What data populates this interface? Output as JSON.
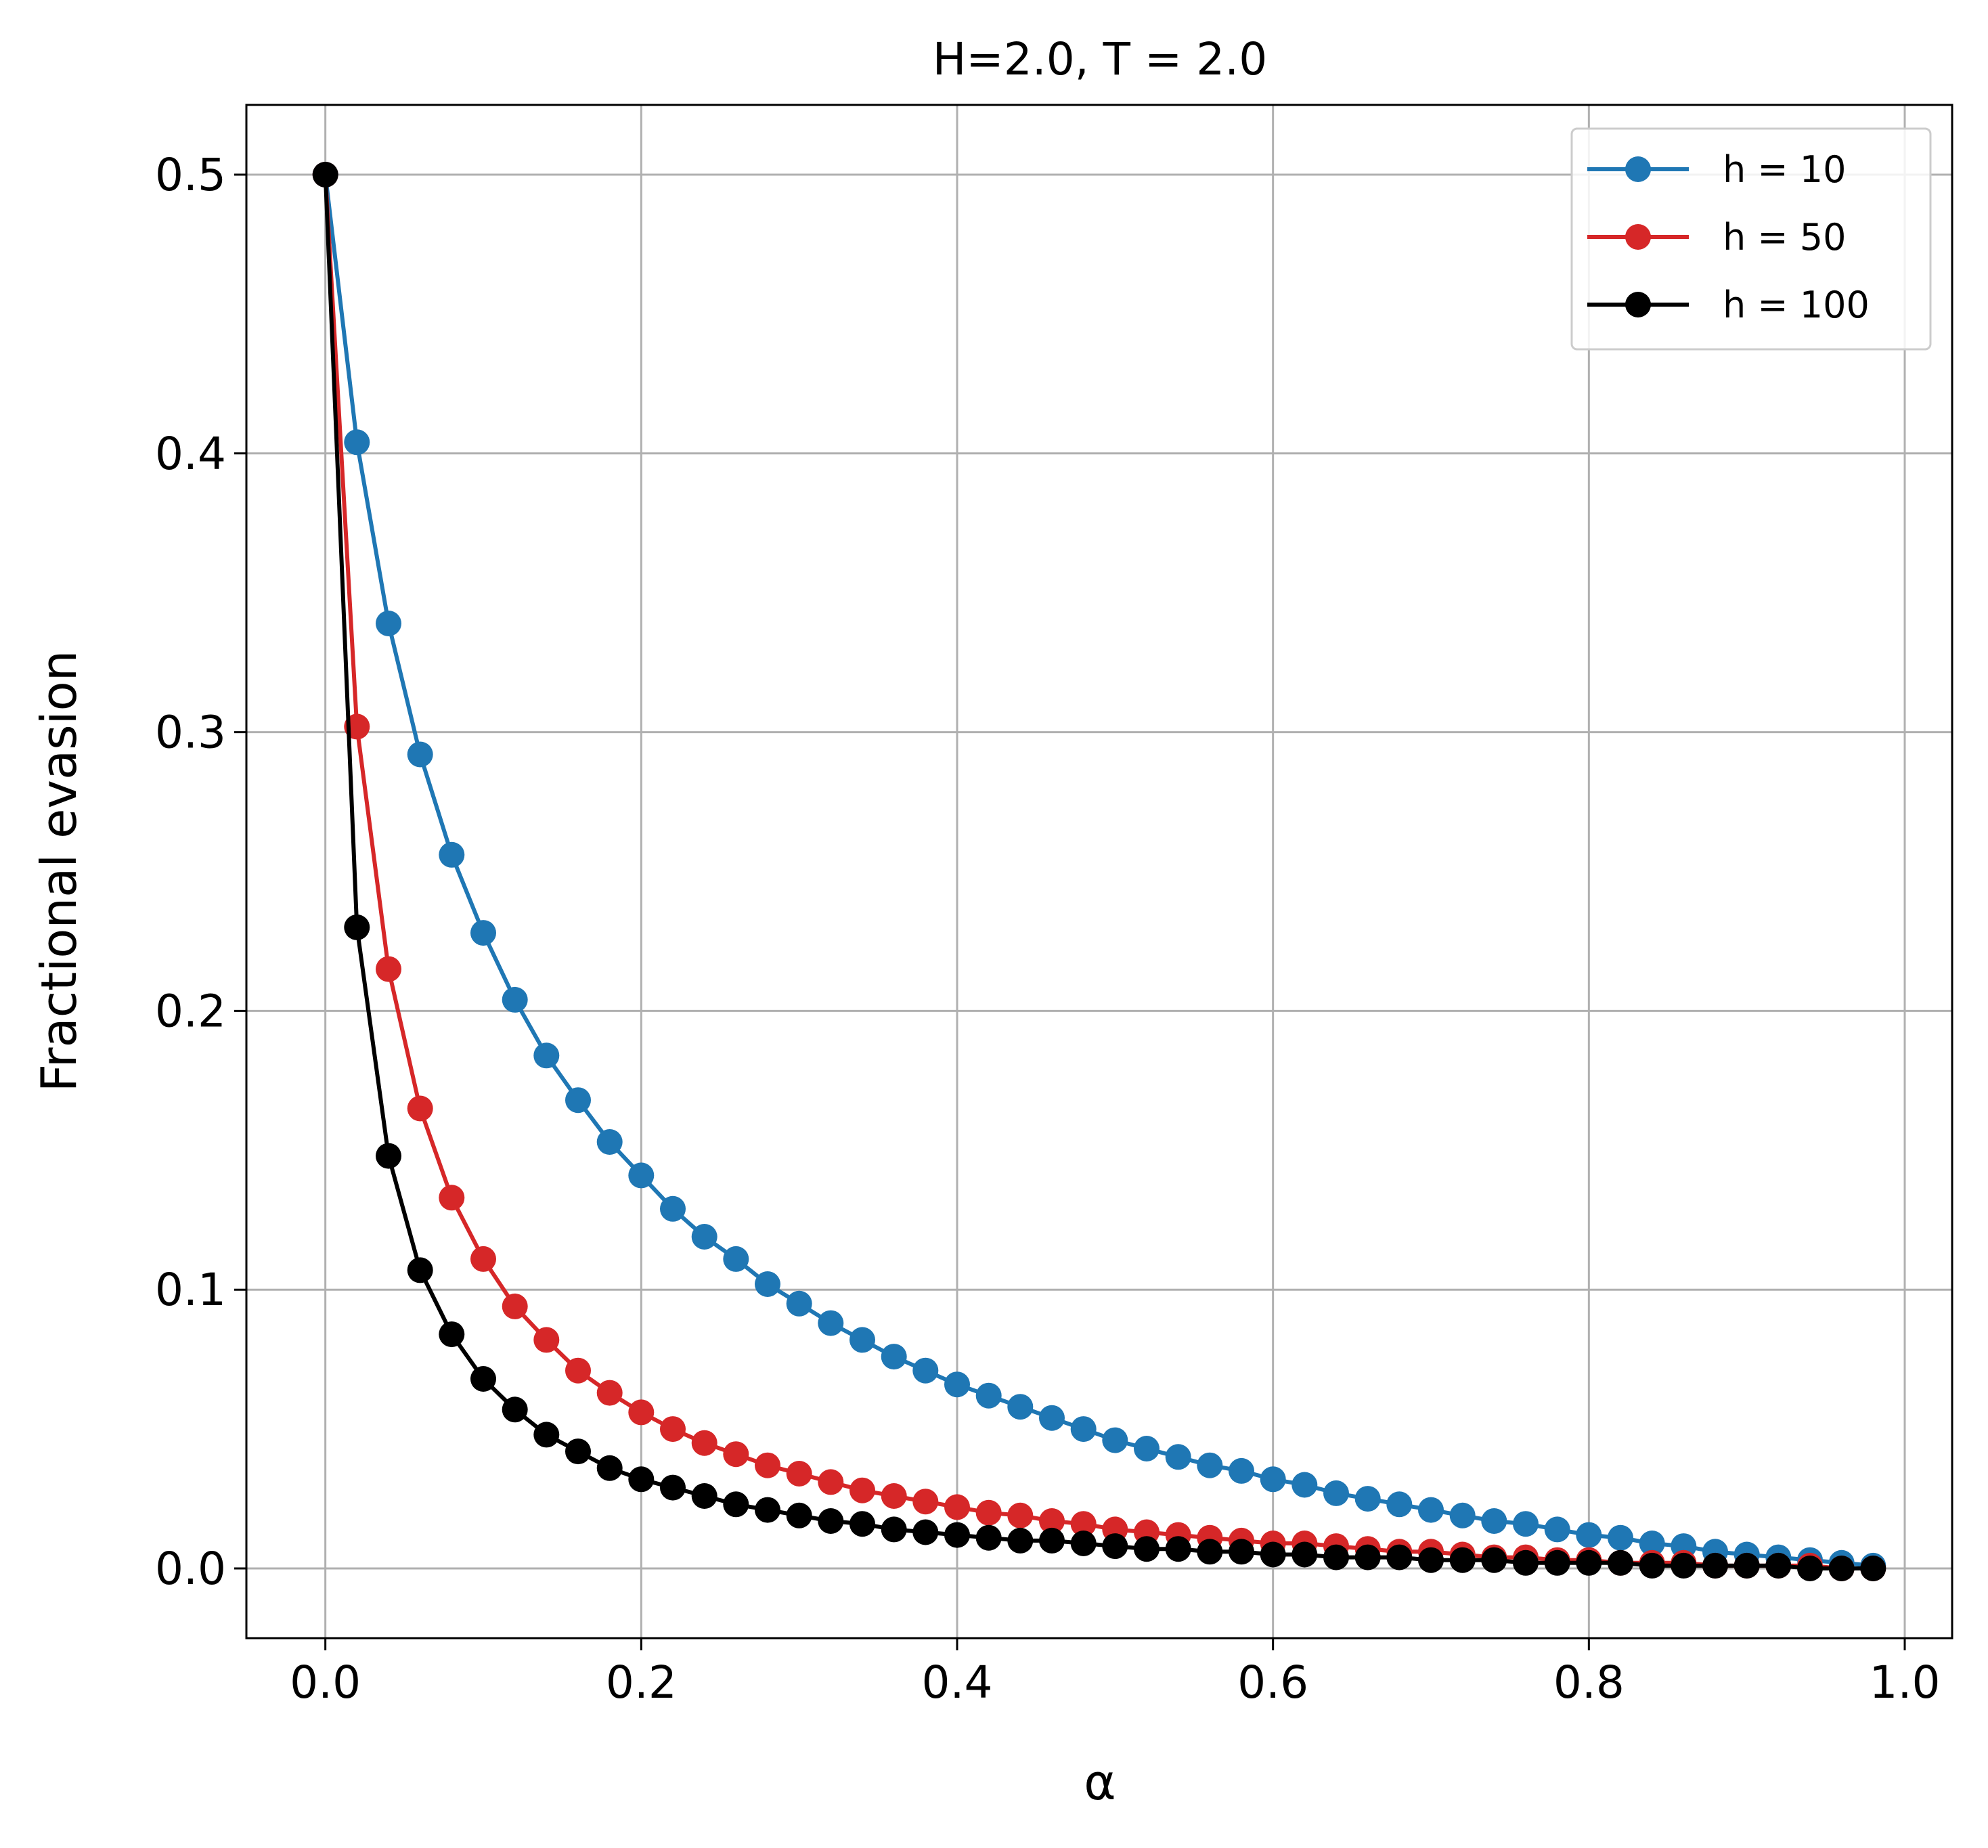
{
  "chart_data": {
    "type": "line",
    "title": "H=2.0, T = 2.0",
    "xlabel": "α",
    "ylabel": "Fractional evasion",
    "xlim": [
      -0.05,
      1.03
    ],
    "ylim": [
      -0.025,
      0.525
    ],
    "xticks": [
      "0.0",
      "0.2",
      "0.4",
      "0.6",
      "0.8",
      "1.0"
    ],
    "yticks": [
      "0.0",
      "0.1",
      "0.2",
      "0.3",
      "0.4",
      "0.5"
    ],
    "grid": true,
    "legend_position": "top-right",
    "x": [
      0.0,
      0.02,
      0.04,
      0.06,
      0.08,
      0.1,
      0.12,
      0.14,
      0.16,
      0.18,
      0.2,
      0.22,
      0.24,
      0.26,
      0.28,
      0.3,
      0.32,
      0.34,
      0.36,
      0.38,
      0.4,
      0.42,
      0.44,
      0.46,
      0.48,
      0.5,
      0.52,
      0.54,
      0.56,
      0.58,
      0.6,
      0.62,
      0.64,
      0.66,
      0.68,
      0.7,
      0.72,
      0.74,
      0.76,
      0.78,
      0.8,
      0.82,
      0.84,
      0.86,
      0.88,
      0.9,
      0.92,
      0.94,
      0.96,
      0.98
    ],
    "series": [
      {
        "name": "h = 10",
        "color": "#1f77b4",
        "values": [
          0.5,
          0.404,
          0.339,
          0.292,
          0.256,
          0.228,
          0.204,
          0.184,
          0.168,
          0.153,
          0.141,
          0.129,
          0.119,
          0.111,
          0.102,
          0.095,
          0.088,
          0.082,
          0.076,
          0.071,
          0.066,
          0.062,
          0.058,
          0.054,
          0.05,
          0.046,
          0.043,
          0.04,
          0.037,
          0.035,
          0.032,
          0.03,
          0.027,
          0.025,
          0.023,
          0.021,
          0.019,
          0.017,
          0.016,
          0.014,
          0.012,
          0.011,
          0.009,
          0.008,
          0.006,
          0.005,
          0.004,
          0.003,
          0.002,
          0.001
        ]
      },
      {
        "name": "h = 50",
        "color": "#d62728",
        "values": [
          0.5,
          0.302,
          0.215,
          0.165,
          0.133,
          0.111,
          0.094,
          0.082,
          0.071,
          0.063,
          0.056,
          0.05,
          0.045,
          0.041,
          0.037,
          0.034,
          0.031,
          0.028,
          0.026,
          0.024,
          0.022,
          0.02,
          0.019,
          0.017,
          0.016,
          0.014,
          0.013,
          0.012,
          0.011,
          0.01,
          0.009,
          0.009,
          0.008,
          0.007,
          0.006,
          0.006,
          0.005,
          0.004,
          0.004,
          0.003,
          0.003,
          0.002,
          0.002,
          0.002,
          0.001,
          0.001,
          0.001,
          0.001,
          0.0,
          0.0
        ]
      },
      {
        "name": "h = 100",
        "color": "#000000",
        "values": [
          0.5,
          0.23,
          0.148,
          0.107,
          0.084,
          0.068,
          0.057,
          0.048,
          0.042,
          0.036,
          0.032,
          0.029,
          0.026,
          0.023,
          0.021,
          0.019,
          0.017,
          0.016,
          0.014,
          0.013,
          0.012,
          0.011,
          0.01,
          0.01,
          0.009,
          0.008,
          0.007,
          0.007,
          0.006,
          0.006,
          0.005,
          0.005,
          0.004,
          0.004,
          0.004,
          0.003,
          0.003,
          0.003,
          0.002,
          0.002,
          0.002,
          0.002,
          0.001,
          0.001,
          0.001,
          0.001,
          0.001,
          0.0,
          0.0,
          0.0
        ]
      }
    ]
  }
}
